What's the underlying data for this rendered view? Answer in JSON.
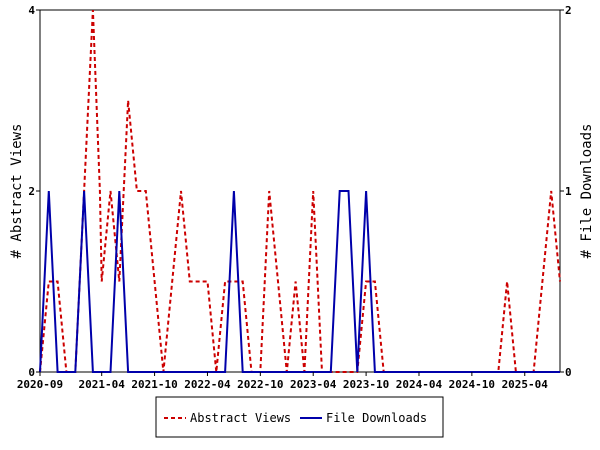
{
  "chart_data": {
    "type": "line",
    "x_labels": [
      "2020-09",
      "2021-04",
      "2021-10",
      "2022-04",
      "2022-10",
      "2023-04",
      "2023-10",
      "2024-04",
      "2024-10",
      "2025-04"
    ],
    "x_label_months": [
      0,
      7,
      13,
      19,
      25,
      31,
      37,
      43,
      49,
      55
    ],
    "x_range_months": [
      0,
      59
    ],
    "ylabel_left": "# Abstract Views",
    "ylabel_right": "# File Downloads",
    "y_left_range": [
      0,
      4
    ],
    "y_left_ticks": [
      "0",
      "2",
      "4"
    ],
    "y_right_range": [
      0,
      2
    ],
    "y_right_ticks": [
      "0",
      "1",
      "2"
    ],
    "grid": false,
    "legend_position": "bottom",
    "series": [
      {
        "name": "Abstract Views",
        "axis": "left",
        "color": "#cc0000",
        "style": "dashed",
        "x": [
          0,
          1,
          2,
          3,
          4,
          5,
          6,
          6.8,
          7,
          8,
          9,
          10,
          11,
          12,
          13,
          14,
          15,
          16,
          17,
          18,
          19,
          20,
          21,
          22,
          23,
          24,
          25,
          26,
          27,
          28,
          29,
          30,
          31,
          32,
          33,
          34,
          35,
          36,
          37,
          38,
          39,
          40,
          41,
          42,
          43,
          44,
          45,
          46,
          47,
          48,
          49,
          50,
          51,
          52,
          53,
          54,
          55,
          56,
          57,
          58,
          59
        ],
        "y": [
          0,
          1,
          1,
          0,
          0,
          2,
          4,
          2,
          1,
          2,
          1,
          3,
          2,
          2,
          1,
          0,
          1,
          2,
          1,
          1,
          1,
          0,
          1,
          1,
          1,
          0,
          0,
          2,
          1,
          0,
          1,
          0,
          2,
          0,
          0,
          0,
          0,
          0,
          1,
          1,
          0,
          0,
          0,
          0,
          0,
          0,
          0,
          0,
          0,
          0,
          0,
          0,
          0,
          0,
          1,
          0,
          0,
          0,
          1,
          2,
          1
        ]
      },
      {
        "name": "File Downloads",
        "axis": "right",
        "color": "#0000aa",
        "style": "solid",
        "x": [
          0,
          1,
          2,
          3,
          4,
          5,
          6,
          7,
          8,
          9,
          10,
          11,
          12,
          13,
          14,
          15,
          16,
          17,
          18,
          19,
          20,
          21,
          22,
          23,
          24,
          25,
          26,
          27,
          28,
          29,
          30,
          31,
          32,
          33,
          34,
          35,
          36,
          37,
          38,
          39,
          40,
          41,
          42,
          43,
          44,
          45,
          46,
          47,
          48,
          49,
          50,
          51,
          52,
          53,
          54,
          55,
          56,
          57,
          58,
          59
        ],
        "y": [
          0,
          1,
          0,
          0,
          0,
          1,
          0,
          0,
          0,
          1,
          0,
          0,
          0,
          0,
          0,
          0,
          0,
          0,
          0,
          0,
          0,
          0,
          1,
          0,
          0,
          0,
          0,
          0,
          0,
          0,
          0,
          0,
          0,
          0,
          1,
          1,
          0,
          1,
          0,
          0,
          0,
          0,
          0,
          0,
          0,
          0,
          0,
          0,
          0,
          0,
          0,
          0,
          0,
          0,
          0,
          0,
          0,
          0,
          0,
          0
        ]
      }
    ]
  }
}
